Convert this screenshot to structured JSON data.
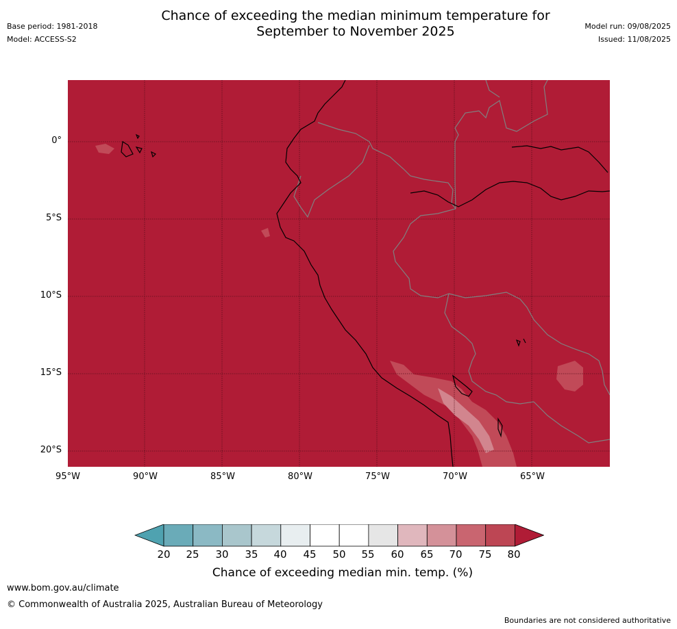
{
  "header": {
    "title_line1": "Chance of exceeding the median minimum temperature for",
    "title_line2": "September to November 2025",
    "base_period": "Base period: 1981-2018",
    "model": "Model: ACCESS-S2",
    "model_run": "Model run: 09/08/2025",
    "issued": "Issued: 11/08/2025"
  },
  "map": {
    "lat_labels": [
      "0°",
      "5°S",
      "10°S",
      "15°S",
      "20°S"
    ],
    "lon_labels": [
      "95°W",
      "90°W",
      "85°W",
      "80°W",
      "75°W",
      "70°W",
      "65°W"
    ],
    "background_color": "#b01c36",
    "coastline_color": "#000000",
    "border_color": "#808080"
  },
  "colorbar": {
    "ticks": [
      "20",
      "25",
      "30",
      "35",
      "40",
      "45",
      "50",
      "55",
      "60",
      "65",
      "70",
      "75",
      "80"
    ],
    "colors": [
      "#6aabb8",
      "#8bb9c4",
      "#a9c6cc",
      "#c6d8dc",
      "#e8eef0",
      "#ffffff",
      "#ffffff",
      "#e6e6e6",
      "#e0b7bd",
      "#d49199",
      "#c96570",
      "#bd4654"
    ],
    "under_color": "#4fa2b0",
    "over_color": "#b01c36",
    "label": "Chance of exceeding median min. temp. (%)"
  },
  "footer": {
    "url": "www.bom.gov.au/climate",
    "copyright": "© Commonwealth of Australia 2025, Australian Bureau of Meteorology",
    "disclaimer": "Boundaries are not considered authoritative"
  }
}
